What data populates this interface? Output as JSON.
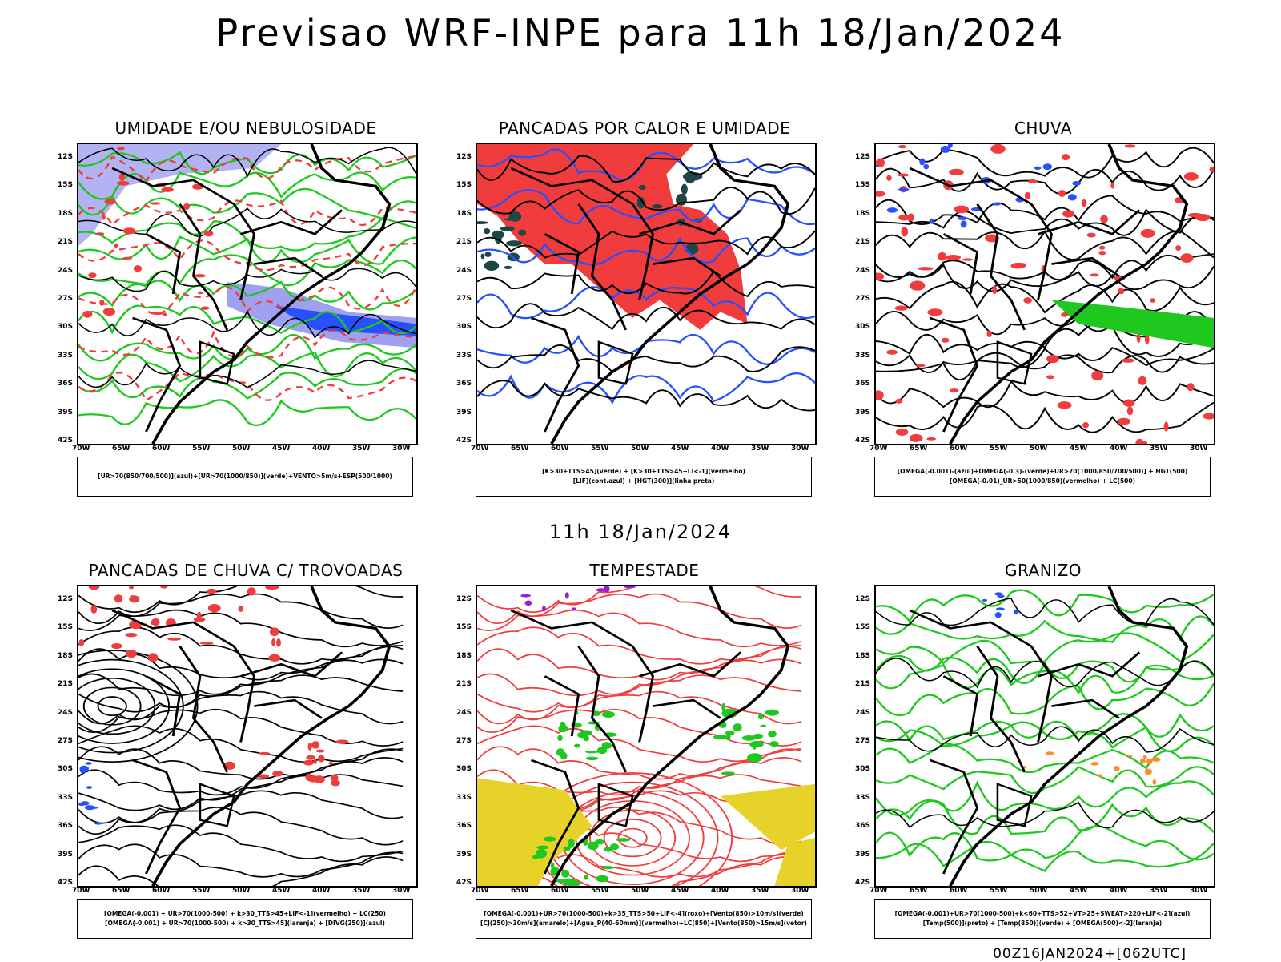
{
  "title": "Previsao WRF-INPE  para 11h 18/Jan/2024",
  "subtitle": "11h 18/Jan/2024",
  "footer": "00Z16JAN2024+[062UTC]",
  "lat_labels": [
    "12S",
    "15S",
    "18S",
    "21S",
    "24S",
    "27S",
    "30S",
    "33S",
    "36S",
    "39S",
    "42S"
  ],
  "lon_labels": [
    "70W",
    "65W",
    "60W",
    "55W",
    "50W",
    "45W",
    "40W",
    "35W",
    "30W"
  ],
  "panels": [
    {
      "title": "UMIDADE E/OU NEBULOSIDADE",
      "legend": [
        "[UR>70(850/700/500)](azul)+[UR>70(1000/850)](verde)+VENTO>5m/s+ESP(500/1000)"
      ]
    },
    {
      "title": "PANCADAS POR CALOR E UMIDADE",
      "legend": [
        "[K>30+TTS>45](verde) + [K>30+TTS>45+LI<-1](vermelho)",
        "[LIF](cont.azul) + [HGT(300)](linha preta)"
      ]
    },
    {
      "title": "CHUVA",
      "legend": [
        "[OMEGA(-0.001)-(azul)+OMEGA(-0.3)-(verde)+UR>70(1000/850/700/500)] + HGT(500)",
        "[OMEGA(-0.01)_UR>50(1000/850)(vermelho) + LC(500)"
      ]
    },
    {
      "title": "PANCADAS DE CHUVA C/ TROVOADAS",
      "legend": [
        "[OMEGA(-0.001) + UR>70(1000-500) + k>30_TTS>45+LIF<-1](vermelho) + LC(250)",
        "[OMEGA(-0.001) + UR>70(1000-500) + k>30_TTS>45](laranja) + [DIVG(250)](azul)"
      ]
    },
    {
      "title": "TEMPESTADE",
      "legend": [
        "[OMEGA(-0.001)+UR>70(1000-500)+k>35_TTS>50+LIF<-4](roxo)+[Vento(850)>10m/s](verde)",
        "[CJ(250)>30m/s](amarelo)+[Agua_P(40-60mm)](vermelho)+LC(850)+[Vento(850)>15m/s](vetor)"
      ]
    },
    {
      "title": "GRANIZO",
      "legend": [
        "[OMEGA(-0.001)+UR>70(1000-500)+k<60+TTS>52+VT>25+SWEAT>220+LIF<-2](azul)",
        "[Temp(500)](preto) + [Temp(850)](verde) + [OMEGA(500)<-2](laranja)"
      ]
    }
  ],
  "colors": {
    "red": "#f03c3c",
    "green": "#1ec81e",
    "blue": "#2850ff",
    "lavender": "#a0a0f0",
    "dark_teal": "#1e4646",
    "yellow": "#e6d228",
    "purple": "#9b1ed2",
    "orange": "#ff8c28"
  }
}
